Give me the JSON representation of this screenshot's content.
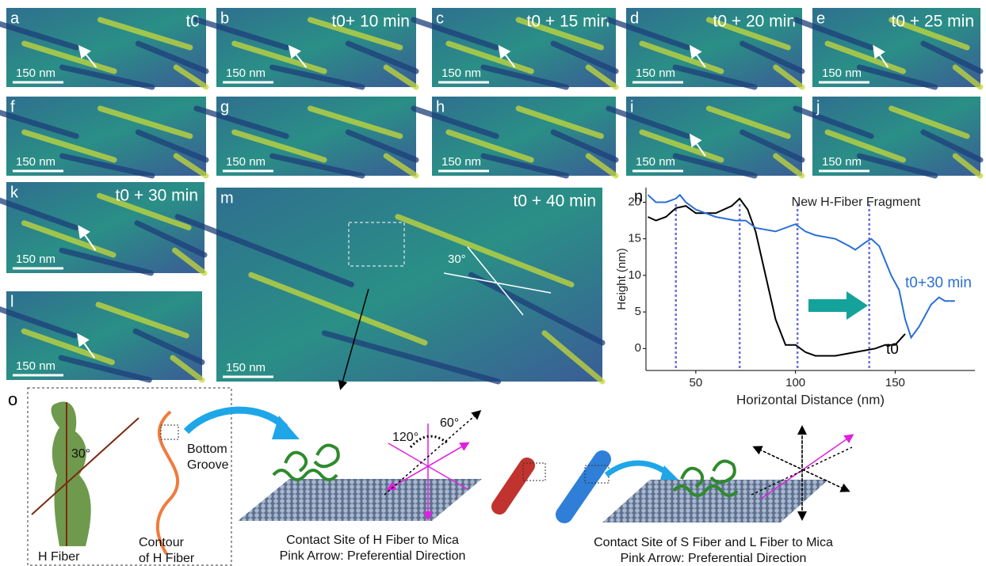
{
  "panels": [
    {
      "letter": "a",
      "time": "t0",
      "scale": "150 nm"
    },
    {
      "letter": "b",
      "time": "t0+ 10 min",
      "scale": "150 nm"
    },
    {
      "letter": "c",
      "time": "t0 + 15 min",
      "scale": "150 nm"
    },
    {
      "letter": "d",
      "time": "t0 + 20 min",
      "scale": "150 nm"
    },
    {
      "letter": "e",
      "time": "t0 + 25 min",
      "scale": "150 nm"
    },
    {
      "letter": "f",
      "scale": "150 nm"
    },
    {
      "letter": "g",
      "scale": "150 nm"
    },
    {
      "letter": "h",
      "scale": "150 nm"
    },
    {
      "letter": "i",
      "scale": "150 nm"
    },
    {
      "letter": "j",
      "scale": "150 nm"
    },
    {
      "letter": "k",
      "time": "t0 + 30 min",
      "scale": "150 nm"
    },
    {
      "letter": "l",
      "scale": "150 nm"
    },
    {
      "letter": "m",
      "time": "t0 + 40 min",
      "scale": "150 nm",
      "angle": "30°"
    }
  ],
  "chart_data": {
    "type": "line",
    "letter": "n",
    "annotation": "New H-Fiber Fragment",
    "x_label": "Horizontal Distance (nm)",
    "y_label": "Height (nm)",
    "xlim": [
      25,
      190
    ],
    "ylim": [
      -3,
      22
    ],
    "xticks": [
      50,
      100,
      150
    ],
    "yticks": [
      0,
      5,
      10,
      15,
      20
    ],
    "markers_x": [
      40,
      72,
      101,
      137
    ],
    "series": [
      {
        "name": "t0",
        "color": "#000000",
        "x": [
          26,
          30,
          35,
          40,
          45,
          50,
          60,
          68,
          72,
          76,
          80,
          85,
          90,
          95,
          100,
          105,
          110,
          120,
          130,
          140,
          145,
          150,
          155
        ],
        "values": [
          18,
          17.5,
          18,
          19.2,
          19.5,
          18.5,
          18.5,
          19.5,
          20.5,
          19,
          16,
          10,
          4,
          0.5,
          0.5,
          -0.5,
          -1,
          -1,
          -0.5,
          0,
          0.5,
          0.5,
          2
        ]
      },
      {
        "name": "t0+30 min",
        "color": "#2a6fd6",
        "x": [
          26,
          30,
          35,
          40,
          42,
          45,
          50,
          60,
          70,
          75,
          80,
          90,
          100,
          105,
          110,
          120,
          127,
          130,
          135,
          138,
          142,
          148,
          152,
          155,
          158,
          162,
          168,
          172,
          175,
          180
        ],
        "values": [
          21,
          20,
          20,
          20.5,
          21,
          20,
          19,
          18,
          17.5,
          17.5,
          16.5,
          16,
          17,
          16,
          15.5,
          15,
          14,
          13.5,
          14.5,
          15,
          14,
          10,
          8,
          4,
          1.5,
          3,
          6,
          7,
          6.5,
          6.5
        ]
      }
    ]
  },
  "diagram": {
    "letter": "o",
    "h_fiber": "H Fiber",
    "angle": "30°",
    "bottom_groove": [
      "Bottom",
      "Groove"
    ],
    "contour": [
      "Contour",
      "of H Fiber"
    ],
    "angle_120": "120°",
    "angle_60": "60°",
    "caption_h": [
      "Contact Site of H Fiber to Mica",
      "Pink Arrow: Preferential Direction"
    ],
    "caption_sl": [
      "Contact Site of S Fiber and L Fiber to Mica",
      "Pink Arrow: Preferential Direction"
    ]
  }
}
